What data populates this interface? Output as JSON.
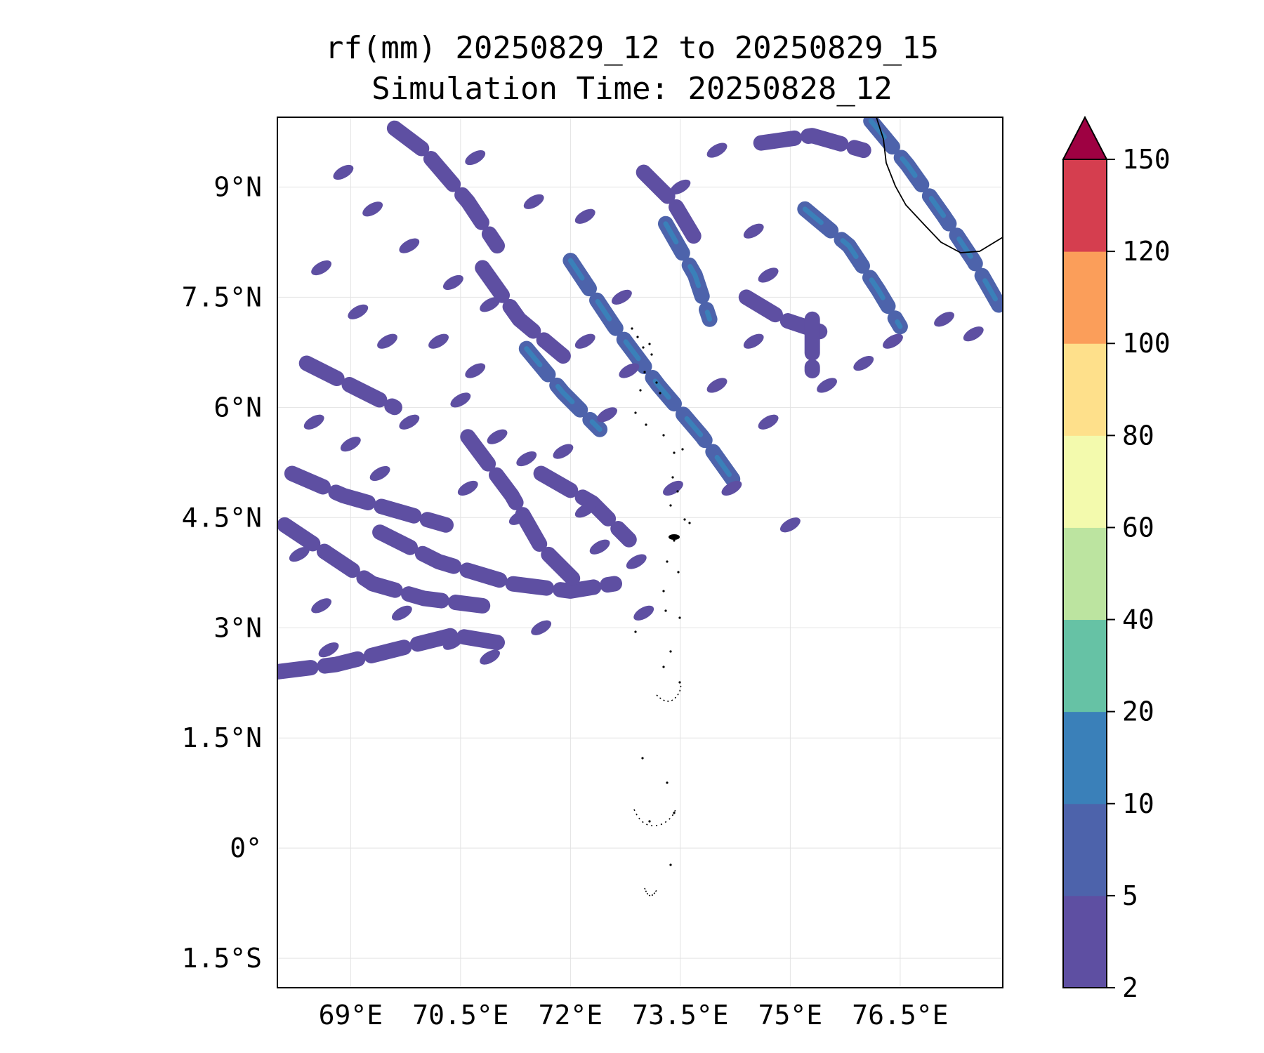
{
  "title": {
    "line1": "rf(mm) 20250829_12 to 20250829_15",
    "line2": "Simulation Time: 20250828_12"
  },
  "map": {
    "lon_range": [
      68.0,
      77.9
    ],
    "lat_range": [
      -1.9,
      9.95
    ],
    "lon_ticks": [
      {
        "value": 69.0,
        "label": "69°E"
      },
      {
        "value": 70.5,
        "label": "70.5°E"
      },
      {
        "value": 72.0,
        "label": "72°E"
      },
      {
        "value": 73.5,
        "label": "73.5°E"
      },
      {
        "value": 75.0,
        "label": "75°E"
      },
      {
        "value": 76.5,
        "label": "76.5°E"
      }
    ],
    "lat_ticks": [
      {
        "value": 9.0,
        "label": "9°N"
      },
      {
        "value": 7.5,
        "label": "7.5°N"
      },
      {
        "value": 6.0,
        "label": "6°N"
      },
      {
        "value": 4.5,
        "label": "4.5°N"
      },
      {
        "value": 3.0,
        "label": "3°N"
      },
      {
        "value": 1.5,
        "label": "1.5°N"
      },
      {
        "value": 0.0,
        "label": "0°"
      },
      {
        "value": -1.5,
        "label": "1.5°S"
      }
    ],
    "gridlines": true,
    "rain_bands": [
      {
        "pts": [
          [
            68.0,
            2.4
          ],
          [
            68.8,
            2.5
          ],
          [
            69.6,
            2.7
          ],
          [
            70.4,
            2.9
          ],
          [
            71.0,
            2.8
          ]
        ],
        "level": 0
      },
      {
        "pts": [
          [
            68.1,
            4.4
          ],
          [
            68.7,
            4.0
          ],
          [
            69.3,
            3.6
          ],
          [
            70.0,
            3.4
          ],
          [
            70.8,
            3.3
          ]
        ],
        "level": 0
      },
      {
        "pts": [
          [
            68.2,
            5.1
          ],
          [
            68.9,
            4.8
          ],
          [
            69.6,
            4.6
          ],
          [
            70.3,
            4.4
          ]
        ],
        "level": 0
      },
      {
        "pts": [
          [
            69.4,
            4.3
          ],
          [
            70.2,
            3.9
          ],
          [
            71.2,
            3.6
          ],
          [
            72.0,
            3.5
          ],
          [
            72.6,
            3.6
          ]
        ],
        "level": 0
      },
      {
        "pts": [
          [
            70.6,
            5.6
          ],
          [
            71.2,
            4.8
          ],
          [
            71.6,
            4.1
          ],
          [
            72.1,
            3.6
          ]
        ],
        "level": 0
      },
      {
        "pts": [
          [
            71.6,
            5.1
          ],
          [
            72.3,
            4.7
          ],
          [
            72.8,
            4.2
          ]
        ],
        "level": 0
      },
      {
        "pts": [
          [
            72.0,
            8.0
          ],
          [
            72.6,
            7.1
          ],
          [
            73.2,
            6.3
          ],
          [
            73.8,
            5.6
          ],
          [
            74.3,
            4.9
          ]
        ],
        "level": 1
      },
      {
        "pts": [
          [
            71.4,
            6.8
          ],
          [
            71.9,
            6.2
          ],
          [
            72.4,
            5.7
          ]
        ],
        "level": 1
      },
      {
        "pts": [
          [
            73.3,
            8.5
          ],
          [
            73.7,
            7.8
          ],
          [
            73.9,
            7.2
          ]
        ],
        "level": 1
      },
      {
        "pts": [
          [
            74.4,
            7.5
          ],
          [
            74.9,
            7.2
          ],
          [
            75.5,
            7.0
          ]
        ],
        "level": 0
      },
      {
        "pts": [
          [
            75.2,
            8.7
          ],
          [
            75.8,
            8.2
          ],
          [
            76.2,
            7.6
          ],
          [
            76.5,
            7.1
          ]
        ],
        "level": 1
      },
      {
        "pts": [
          [
            76.1,
            9.9
          ],
          [
            76.6,
            9.3
          ],
          [
            77.1,
            8.6
          ],
          [
            77.5,
            8.0
          ],
          [
            77.9,
            7.3
          ]
        ],
        "level": 1
      },
      {
        "pts": [
          [
            74.6,
            9.6
          ],
          [
            75.3,
            9.7
          ],
          [
            76.0,
            9.5
          ]
        ],
        "level": 0
      },
      {
        "pts": [
          [
            73.0,
            9.2
          ],
          [
            73.4,
            8.8
          ],
          [
            73.7,
            8.3
          ]
        ],
        "level": 0
      },
      {
        "pts": [
          [
            69.6,
            9.8
          ],
          [
            70.0,
            9.5
          ],
          [
            70.6,
            8.8
          ],
          [
            71.0,
            8.2
          ]
        ],
        "level": 0
      },
      {
        "pts": [
          [
            70.8,
            7.9
          ],
          [
            71.3,
            7.2
          ],
          [
            71.9,
            6.7
          ]
        ],
        "level": 0
      },
      {
        "pts": [
          [
            68.4,
            6.6
          ],
          [
            69.0,
            6.3
          ],
          [
            69.6,
            6.0
          ]
        ],
        "level": 0
      },
      {
        "pts": [
          [
            75.3,
            7.2
          ],
          [
            75.3,
            6.5
          ]
        ],
        "level": 0
      }
    ],
    "rain_blobs": [
      [
        68.9,
        9.2
      ],
      [
        69.3,
        8.7
      ],
      [
        69.8,
        8.2
      ],
      [
        70.4,
        7.7
      ],
      [
        70.9,
        7.4
      ],
      [
        68.6,
        7.9
      ],
      [
        69.1,
        7.3
      ],
      [
        69.5,
        6.9
      ],
      [
        70.2,
        6.9
      ],
      [
        70.7,
        6.5
      ],
      [
        68.5,
        5.8
      ],
      [
        69.0,
        5.5
      ],
      [
        69.8,
        5.8
      ],
      [
        70.5,
        6.1
      ],
      [
        71.0,
        5.6
      ],
      [
        71.4,
        5.3
      ],
      [
        71.9,
        5.4
      ],
      [
        72.5,
        5.9
      ],
      [
        72.8,
        6.5
      ],
      [
        72.2,
        6.9
      ],
      [
        72.7,
        7.5
      ],
      [
        72.2,
        8.6
      ],
      [
        71.5,
        8.8
      ],
      [
        70.7,
        9.4
      ],
      [
        73.5,
        9.0
      ],
      [
        74.0,
        9.5
      ],
      [
        74.5,
        8.4
      ],
      [
        74.7,
        7.8
      ],
      [
        74.0,
        6.3
      ],
      [
        74.5,
        6.9
      ],
      [
        76.0,
        6.6
      ],
      [
        76.4,
        6.9
      ],
      [
        75.5,
        6.3
      ],
      [
        74.7,
        5.8
      ],
      [
        72.4,
        4.1
      ],
      [
        72.9,
        3.9
      ],
      [
        73.0,
        3.2
      ],
      [
        71.6,
        3.0
      ],
      [
        70.9,
        2.6
      ],
      [
        70.4,
        2.8
      ],
      [
        69.7,
        3.2
      ],
      [
        68.6,
        3.3
      ],
      [
        75.0,
        4.4
      ],
      [
        74.2,
        4.9
      ],
      [
        73.4,
        4.9
      ],
      [
        72.2,
        4.6
      ],
      [
        71.3,
        4.5
      ],
      [
        70.6,
        4.9
      ],
      [
        69.4,
        5.1
      ],
      [
        68.3,
        4.0
      ],
      [
        68.7,
        2.7
      ],
      [
        77.1,
        7.2
      ],
      [
        77.5,
        7.0
      ]
    ]
  },
  "colorbar": {
    "levels": [
      2,
      5,
      10,
      20,
      40,
      60,
      80,
      100,
      120,
      150
    ],
    "labels": [
      "2",
      "5",
      "10",
      "20",
      "40",
      "60",
      "80",
      "100",
      "120",
      "150"
    ],
    "colors": [
      "#5e4fa2",
      "#4d63ab",
      "#3a80b9",
      "#66c2a5",
      "#bce4a0",
      "#f3faad",
      "#fee08b",
      "#fb9e5a",
      "#d53e4f"
    ],
    "extend_color": "#9e0142"
  }
}
